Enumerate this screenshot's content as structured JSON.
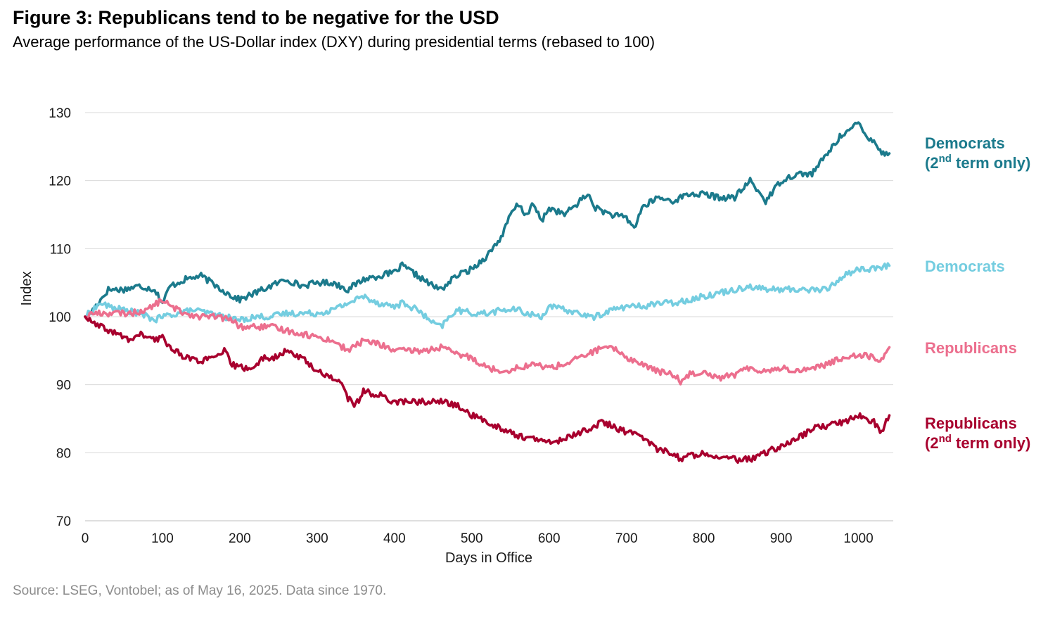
{
  "title": "Figure 3: Republicans tend to be negative for the USD",
  "subtitle": "Average performance of the US-Dollar index (DXY) during presidential terms (rebased to 100)",
  "source": "Source: LSEG, Vontobel; as of May 16, 2025. Data since 1970.",
  "chart_data": {
    "type": "line",
    "title": "Figure 3: Republicans tend to be negative for the USD",
    "subtitle": "Average performance of the US-Dollar index (DXY) during presidential terms (rebased to 100)",
    "xlabel": "Days in Office",
    "ylabel": "Index",
    "xlim": [
      0,
      1045
    ],
    "ylim": [
      70,
      130
    ],
    "xticks": [
      0,
      100,
      200,
      300,
      400,
      500,
      600,
      700,
      800,
      900,
      1000
    ],
    "yticks": [
      70,
      80,
      90,
      100,
      110,
      120,
      130
    ],
    "grid": "horizontal",
    "legend": "right, labels at line ends",
    "series": [
      {
        "name": "Democrats (2nd term only)",
        "label_main": "Democrats",
        "label_line2_pre": "(2",
        "label_line2_sup": "nd",
        "label_line2_post": " term only)",
        "color": "#1b7a8c",
        "points": [
          [
            0,
            100
          ],
          [
            10,
            101
          ],
          [
            20,
            102.5
          ],
          [
            30,
            104
          ],
          [
            50,
            104
          ],
          [
            70,
            104.5
          ],
          [
            90,
            104
          ],
          [
            100,
            102
          ],
          [
            110,
            104.5
          ],
          [
            130,
            105.5
          ],
          [
            150,
            106
          ],
          [
            170,
            104.5
          ],
          [
            190,
            103
          ],
          [
            200,
            102.5
          ],
          [
            220,
            103.5
          ],
          [
            240,
            104.5
          ],
          [
            260,
            105.5
          ],
          [
            280,
            104.5
          ],
          [
            300,
            105
          ],
          [
            320,
            105
          ],
          [
            340,
            104
          ],
          [
            360,
            105.5
          ],
          [
            380,
            106
          ],
          [
            400,
            106.5
          ],
          [
            410,
            107.5
          ],
          [
            430,
            106
          ],
          [
            450,
            104.5
          ],
          [
            460,
            104
          ],
          [
            480,
            106
          ],
          [
            500,
            107
          ],
          [
            520,
            109
          ],
          [
            540,
            112
          ],
          [
            550,
            115
          ],
          [
            560,
            116.5
          ],
          [
            570,
            115
          ],
          [
            580,
            116.5
          ],
          [
            590,
            114
          ],
          [
            600,
            116
          ],
          [
            620,
            115
          ],
          [
            640,
            117
          ],
          [
            650,
            118
          ],
          [
            660,
            116
          ],
          [
            680,
            115
          ],
          [
            700,
            114.5
          ],
          [
            710,
            113
          ],
          [
            720,
            116
          ],
          [
            740,
            117.5
          ],
          [
            760,
            117
          ],
          [
            780,
            118
          ],
          [
            800,
            118
          ],
          [
            820,
            117.5
          ],
          [
            840,
            117.5
          ],
          [
            860,
            120
          ],
          [
            880,
            117
          ],
          [
            900,
            120
          ],
          [
            920,
            121
          ],
          [
            940,
            121
          ],
          [
            960,
            124
          ],
          [
            980,
            127
          ],
          [
            990,
            127.5
          ],
          [
            1000,
            128.5
          ],
          [
            1010,
            126.5
          ],
          [
            1020,
            126
          ],
          [
            1030,
            124
          ],
          [
            1040,
            124
          ]
        ]
      },
      {
        "name": "Democrats",
        "label_main": "Democrats",
        "color": "#74cde0",
        "points": [
          [
            0,
            100
          ],
          [
            10,
            101
          ],
          [
            20,
            102
          ],
          [
            30,
            101.5
          ],
          [
            50,
            101
          ],
          [
            70,
            100.5
          ],
          [
            90,
            99.5
          ],
          [
            100,
            100
          ],
          [
            120,
            100.5
          ],
          [
            140,
            101
          ],
          [
            160,
            100.5
          ],
          [
            180,
            100
          ],
          [
            200,
            99.5
          ],
          [
            220,
            100
          ],
          [
            240,
            100
          ],
          [
            260,
            100.5
          ],
          [
            280,
            100.5
          ],
          [
            300,
            100.5
          ],
          [
            320,
            101
          ],
          [
            340,
            102
          ],
          [
            360,
            103
          ],
          [
            380,
            102
          ],
          [
            400,
            101.5
          ],
          [
            410,
            102
          ],
          [
            430,
            101
          ],
          [
            450,
            99
          ],
          [
            460,
            98.5
          ],
          [
            480,
            101
          ],
          [
            500,
            100.5
          ],
          [
            520,
            100.5
          ],
          [
            540,
            101
          ],
          [
            560,
            101
          ],
          [
            570,
            100.5
          ],
          [
            590,
            100
          ],
          [
            600,
            101.5
          ],
          [
            620,
            101
          ],
          [
            640,
            100.5
          ],
          [
            650,
            100
          ],
          [
            660,
            100
          ],
          [
            680,
            101
          ],
          [
            700,
            101.5
          ],
          [
            720,
            101.5
          ],
          [
            740,
            102
          ],
          [
            760,
            102
          ],
          [
            780,
            102.5
          ],
          [
            800,
            103
          ],
          [
            820,
            103.5
          ],
          [
            840,
            104
          ],
          [
            860,
            104.5
          ],
          [
            880,
            104
          ],
          [
            900,
            104
          ],
          [
            920,
            104
          ],
          [
            940,
            104
          ],
          [
            960,
            104
          ],
          [
            980,
            106
          ],
          [
            1000,
            107
          ],
          [
            1020,
            107
          ],
          [
            1040,
            107.5
          ]
        ]
      },
      {
        "name": "Republicans",
        "label_main": "Republicans",
        "color": "#ec6f8e",
        "points": [
          [
            0,
            100
          ],
          [
            10,
            100.5
          ],
          [
            20,
            100.5
          ],
          [
            40,
            100.5
          ],
          [
            60,
            100.5
          ],
          [
            80,
            101
          ],
          [
            100,
            102.5
          ],
          [
            110,
            101.5
          ],
          [
            130,
            100.5
          ],
          [
            150,
            100
          ],
          [
            170,
            100
          ],
          [
            190,
            99.5
          ],
          [
            200,
            98.5
          ],
          [
            220,
            98.5
          ],
          [
            240,
            98.5
          ],
          [
            260,
            98
          ],
          [
            280,
            97.5
          ],
          [
            300,
            97
          ],
          [
            320,
            96.5
          ],
          [
            340,
            95
          ],
          [
            360,
            96.5
          ],
          [
            380,
            96
          ],
          [
            400,
            95
          ],
          [
            420,
            95
          ],
          [
            440,
            95
          ],
          [
            460,
            95.5
          ],
          [
            480,
            94.5
          ],
          [
            500,
            94
          ],
          [
            520,
            92.5
          ],
          [
            540,
            92
          ],
          [
            560,
            92.5
          ],
          [
            580,
            93
          ],
          [
            600,
            92.5
          ],
          [
            620,
            93
          ],
          [
            640,
            94
          ],
          [
            660,
            95
          ],
          [
            670,
            95.5
          ],
          [
            690,
            95
          ],
          [
            700,
            94
          ],
          [
            720,
            93
          ],
          [
            740,
            92
          ],
          [
            760,
            91.5
          ],
          [
            770,
            90.5
          ],
          [
            780,
            91.5
          ],
          [
            800,
            92
          ],
          [
            820,
            91
          ],
          [
            840,
            91.5
          ],
          [
            860,
            92.5
          ],
          [
            880,
            92
          ],
          [
            900,
            92.5
          ],
          [
            920,
            92
          ],
          [
            940,
            92.5
          ],
          [
            960,
            93
          ],
          [
            980,
            94
          ],
          [
            1000,
            94.5
          ],
          [
            1020,
            94
          ],
          [
            1030,
            93.5
          ],
          [
            1040,
            95.5
          ]
        ]
      },
      {
        "name": "Republicans (2nd term only)",
        "label_main": "Republicans",
        "label_line2_pre": "(2",
        "label_line2_sup": "nd",
        "label_line2_post": " term only)",
        "color": "#a8002e",
        "points": [
          [
            0,
            100
          ],
          [
            10,
            99
          ],
          [
            20,
            98.5
          ],
          [
            40,
            97.5
          ],
          [
            60,
            96.5
          ],
          [
            70,
            97.5
          ],
          [
            90,
            96.5
          ],
          [
            100,
            97
          ],
          [
            110,
            95.5
          ],
          [
            130,
            94
          ],
          [
            150,
            93.5
          ],
          [
            170,
            94
          ],
          [
            180,
            95
          ],
          [
            190,
            93
          ],
          [
            200,
            92.5
          ],
          [
            220,
            92.5
          ],
          [
            230,
            94
          ],
          [
            250,
            94
          ],
          [
            260,
            95
          ],
          [
            270,
            94.5
          ],
          [
            280,
            94
          ],
          [
            300,
            92
          ],
          [
            320,
            91
          ],
          [
            330,
            90.5
          ],
          [
            340,
            88
          ],
          [
            350,
            87
          ],
          [
            360,
            89
          ],
          [
            380,
            88.5
          ],
          [
            400,
            87.5
          ],
          [
            420,
            87.5
          ],
          [
            440,
            87.5
          ],
          [
            460,
            87.5
          ],
          [
            480,
            87
          ],
          [
            500,
            85.5
          ],
          [
            520,
            84.5
          ],
          [
            540,
            83.5
          ],
          [
            560,
            82.5
          ],
          [
            580,
            82
          ],
          [
            600,
            81.5
          ],
          [
            620,
            82
          ],
          [
            640,
            83
          ],
          [
            660,
            84
          ],
          [
            670,
            84.5
          ],
          [
            680,
            84
          ],
          [
            700,
            83
          ],
          [
            720,
            82.5
          ],
          [
            740,
            80.5
          ],
          [
            760,
            80
          ],
          [
            770,
            79
          ],
          [
            780,
            79.5
          ],
          [
            800,
            80
          ],
          [
            820,
            79.5
          ],
          [
            840,
            79
          ],
          [
            860,
            79
          ],
          [
            880,
            80
          ],
          [
            900,
            81
          ],
          [
            920,
            82
          ],
          [
            940,
            83.5
          ],
          [
            960,
            84
          ],
          [
            980,
            84.5
          ],
          [
            1000,
            85.5
          ],
          [
            1020,
            84.5
          ],
          [
            1030,
            83
          ],
          [
            1040,
            85.5
          ]
        ]
      }
    ]
  }
}
